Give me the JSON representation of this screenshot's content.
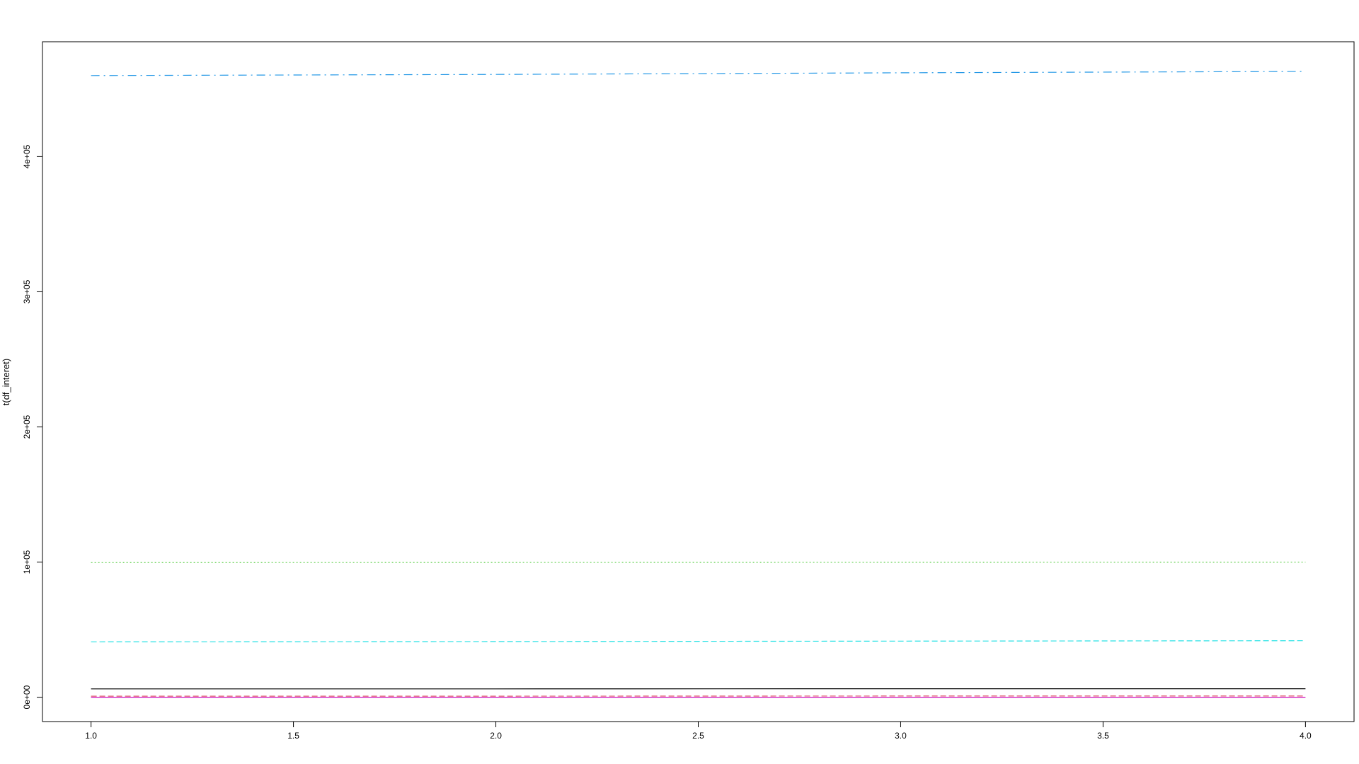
{
  "chart_data": {
    "type": "line",
    "title": "",
    "xlabel": "",
    "ylabel": "t(df_interet)",
    "xlim": [
      0.88,
      4.12
    ],
    "ylim": [
      -18000,
      485000
    ],
    "x_ticks": [
      1.0,
      1.5,
      2.0,
      2.5,
      3.0,
      3.5,
      4.0
    ],
    "x_tick_labels": [
      "1.0",
      "1.5",
      "2.0",
      "2.5",
      "3.0",
      "3.5",
      "4.0"
    ],
    "y_ticks": [
      0,
      100000,
      200000,
      300000,
      400000
    ],
    "y_tick_labels": [
      "0e+00",
      "1e+05",
      "2e+05",
      "3e+05",
      "4e+05"
    ],
    "grid": false,
    "x": [
      1,
      2,
      3,
      4
    ],
    "series": [
      {
        "color": "#2297E6",
        "dash": "12,6,2,6",
        "values": [
          460000,
          460800,
          462000,
          463000
        ]
      },
      {
        "color": "#61D04F",
        "dash": "2,3",
        "values": [
          99600,
          99700,
          99800,
          99900
        ]
      },
      {
        "color": "#28E2E5",
        "dash": "8,4",
        "values": [
          41000,
          41200,
          41500,
          41800
        ]
      },
      {
        "color": "#000000",
        "dash": "",
        "values": [
          6200,
          6200,
          6300,
          6300
        ]
      },
      {
        "color": "#DF536B",
        "dash": "8,4",
        "values": [
          800,
          800,
          900,
          900
        ]
      },
      {
        "color": "#CD0BBC",
        "dash": "",
        "values": [
          0,
          0,
          0,
          0
        ]
      }
    ]
  }
}
